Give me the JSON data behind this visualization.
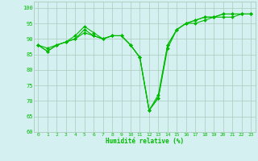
{
  "x": [
    0,
    1,
    2,
    3,
    4,
    5,
    6,
    7,
    8,
    9,
    10,
    11,
    12,
    13,
    14,
    15,
    16,
    17,
    18,
    19,
    20,
    21,
    22,
    23
  ],
  "line1": [
    88,
    86,
    88,
    89,
    91,
    94,
    92,
    90,
    91,
    91,
    88,
    84,
    67,
    71,
    87,
    93,
    95,
    96,
    97,
    97,
    98,
    98,
    98,
    98
  ],
  "line2": [
    88,
    86,
    88,
    89,
    90,
    93,
    91,
    90,
    91,
    91,
    88,
    84,
    67,
    71,
    88,
    93,
    95,
    96,
    97,
    97,
    98,
    98,
    98,
    98
  ],
  "line3": [
    88,
    87,
    88,
    89,
    90,
    92,
    91,
    90,
    91,
    91,
    88,
    84,
    67,
    72,
    88,
    93,
    95,
    95,
    96,
    97,
    97,
    97,
    98,
    98
  ],
  "line_color": "#00bb00",
  "bg_color": "#d4f0f0",
  "grid_color": "#aaccbb",
  "xlabel": "Humidité relative (%)",
  "ylim": [
    60,
    102
  ],
  "xlim": [
    -0.5,
    23.5
  ],
  "yticks": [
    60,
    65,
    70,
    75,
    80,
    85,
    90,
    95,
    100
  ],
  "xticks": [
    0,
    1,
    2,
    3,
    4,
    5,
    6,
    7,
    8,
    9,
    10,
    11,
    12,
    13,
    14,
    15,
    16,
    17,
    18,
    19,
    20,
    21,
    22,
    23
  ]
}
